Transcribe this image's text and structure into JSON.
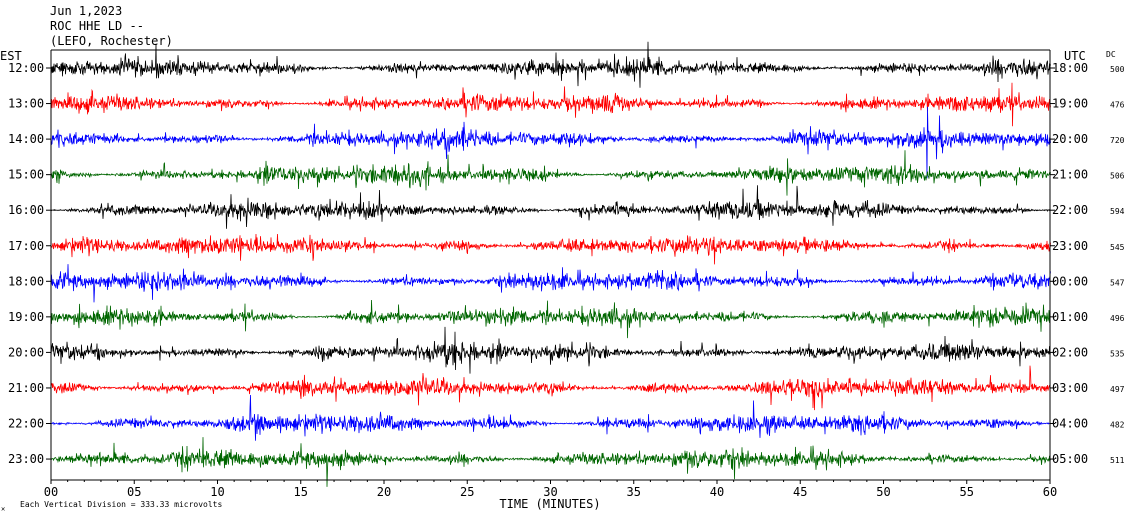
{
  "header": {
    "line1": "Jun 1,2023",
    "line2": "ROC HHE LD --",
    "line3": "(LEFO, Rochester)"
  },
  "left_axis_label": "EST",
  "right_axis_label": "UTC",
  "dc_label": "DC",
  "footer": {
    "mark": "✕",
    "scale_text": "Each Vertical Division =  333.33 microvolts"
  },
  "colors": {
    "background": "#ffffff",
    "axis": "#000000",
    "trace_cycle": [
      "#000000",
      "#ff0000",
      "#0000ff",
      "#006600"
    ]
  },
  "chart_data": {
    "type": "line",
    "xlabel": "TIME (MINUTES)",
    "xlim": [
      0,
      60
    ],
    "x_ticks": [
      "00",
      "05",
      "10",
      "15",
      "20",
      "25",
      "30",
      "35",
      "40",
      "45",
      "50",
      "55",
      "60"
    ],
    "rows": [
      {
        "est": "12:00",
        "utc": "18:00",
        "dc": "500",
        "color": "#000000"
      },
      {
        "est": "13:00",
        "utc": "19:00",
        "dc": "476",
        "color": "#ff0000"
      },
      {
        "est": "14:00",
        "utc": "20:00",
        "dc": "720",
        "color": "#0000ff"
      },
      {
        "est": "15:00",
        "utc": "21:00",
        "dc": "506",
        "color": "#006600"
      },
      {
        "est": "16:00",
        "utc": "22:00",
        "dc": "594",
        "color": "#000000"
      },
      {
        "est": "17:00",
        "utc": "23:00",
        "dc": "545",
        "color": "#ff0000"
      },
      {
        "est": "18:00",
        "utc": "00:00",
        "dc": "547",
        "color": "#0000ff"
      },
      {
        "est": "19:00",
        "utc": "01:00",
        "dc": "496",
        "color": "#006600"
      },
      {
        "est": "20:00",
        "utc": "02:00",
        "dc": "535",
        "color": "#000000"
      },
      {
        "est": "21:00",
        "utc": "03:00",
        "dc": "497",
        "color": "#ff0000"
      },
      {
        "est": "22:00",
        "utc": "04:00",
        "dc": "482",
        "color": "#0000ff"
      },
      {
        "est": "23:00",
        "utc": "05:00",
        "dc": "511",
        "color": "#006600"
      }
    ]
  }
}
